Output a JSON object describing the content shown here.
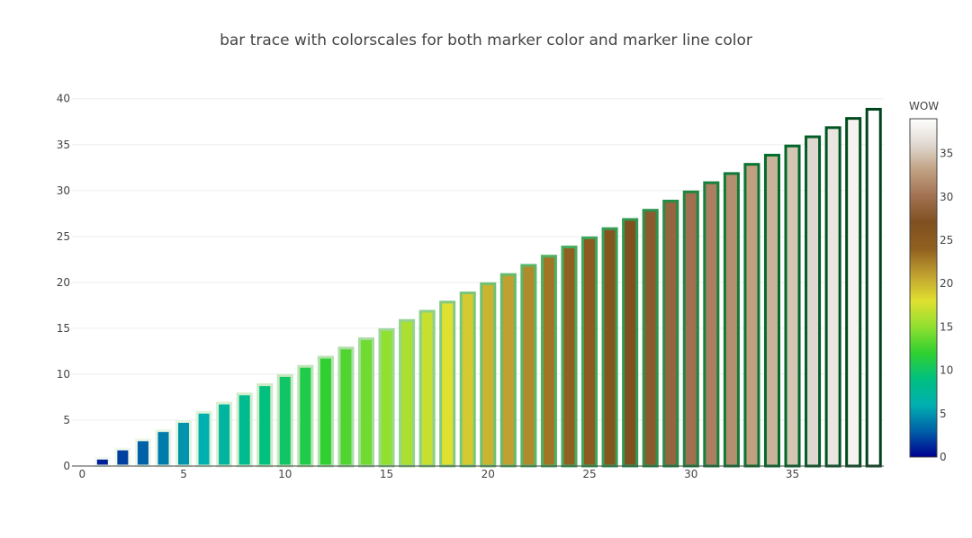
{
  "chart_data": {
    "type": "bar",
    "title": "bar trace with colorscales for both marker color and marker line color",
    "xlabel": "",
    "ylabel": "",
    "x": [
      0,
      1,
      2,
      3,
      4,
      5,
      6,
      7,
      8,
      9,
      10,
      11,
      12,
      13,
      14,
      15,
      16,
      17,
      18,
      19,
      20,
      21,
      22,
      23,
      24,
      25,
      26,
      27,
      28,
      29,
      30,
      31,
      32,
      33,
      34,
      35,
      36,
      37,
      38,
      39
    ],
    "values": [
      0,
      1,
      2,
      3,
      4,
      5,
      6,
      7,
      8,
      9,
      10,
      11,
      12,
      13,
      14,
      15,
      16,
      17,
      18,
      19,
      20,
      21,
      22,
      23,
      24,
      25,
      26,
      27,
      28,
      29,
      30,
      31,
      32,
      33,
      34,
      35,
      36,
      37,
      38,
      39
    ],
    "xlim": [
      -0.5,
      39.5
    ],
    "ylim": [
      0,
      41.05
    ],
    "x_ticks": [
      "0",
      "5",
      "10",
      "15",
      "20",
      "25",
      "30",
      "35"
    ],
    "y_ticks": [
      "0",
      "5",
      "10",
      "15",
      "20",
      "25",
      "30",
      "35",
      "40"
    ],
    "grid": true,
    "colorbar": {
      "title": "WOW",
      "range": [
        0,
        39
      ],
      "ticks": [
        "0",
        "5",
        "10",
        "15",
        "20",
        "25",
        "30",
        "35"
      ],
      "placement": "right"
    },
    "marker_colorscale": [
      "#000090",
      "#0060a8",
      "#00b0b0",
      "#00c080",
      "#30d030",
      "#90e030",
      "#e0e030",
      "#c0a030",
      "#906020",
      "#805020",
      "#a07050",
      "#c0a080",
      "#e0d8d0",
      "#ffffff"
    ],
    "line_colorscale": [
      "#f7fcf5",
      "#e5f5e0",
      "#c7e9c0",
      "#a1d99b",
      "#74c476",
      "#41ab5d",
      "#238b45",
      "#006d2c",
      "#00441b"
    ]
  }
}
